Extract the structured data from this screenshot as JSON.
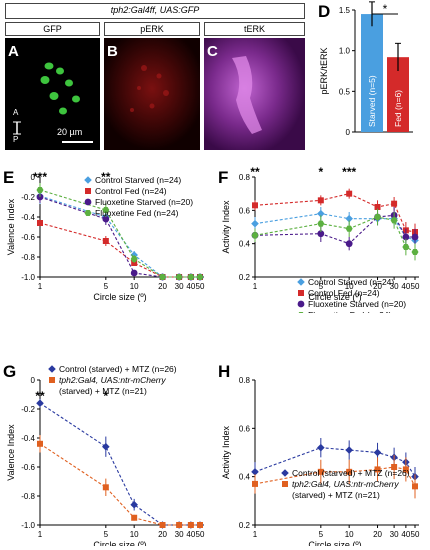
{
  "header": {
    "genotype": "tph2:Gal4ff, UAS:GFP"
  },
  "micrographs": {
    "a": {
      "letter": "A",
      "title": "GFP",
      "axis_a": "A",
      "axis_p": "P",
      "scale": "20 µm"
    },
    "b": {
      "letter": "B",
      "title": "pERK"
    },
    "c": {
      "letter": "C",
      "title": "tERK"
    }
  },
  "colors": {
    "control_starved": "#4a9fe0",
    "control_fed": "#d42a2a",
    "fluoxetine_starved": "#4a1a8a",
    "fluoxetine_fed": "#5cb040",
    "control_mtz": "#2a3aa0",
    "ntr_mtz": "#e06020"
  },
  "panels": {
    "d": {
      "letter": "D"
    },
    "e": {
      "letter": "E"
    },
    "f": {
      "letter": "F"
    },
    "g": {
      "letter": "G"
    },
    "h": {
      "letter": "H"
    }
  },
  "chart_data": [
    {
      "id": "D",
      "type": "bar",
      "ylabel": "pERK/tERK",
      "ylim": [
        0,
        1.5
      ],
      "yticks": [
        0,
        0.5,
        1.0,
        1.5
      ],
      "yticklabels": [
        "0",
        "0.5",
        "1.0",
        "1.5"
      ],
      "categories": [
        "Starved (n=5)",
        "Fed (n=6)"
      ],
      "values": [
        1.45,
        0.92
      ],
      "errors": [
        0.15,
        0.17
      ],
      "bar_colors": [
        "#4a9fe0",
        "#d42a2a"
      ],
      "significance": "*"
    },
    {
      "id": "E",
      "type": "line",
      "ylabel": "Valence Index",
      "xlabel": "Circle size (º)",
      "ylim": [
        -1.0,
        0.0
      ],
      "yticks": [
        -1.0,
        -0.8,
        -0.6,
        -0.4,
        -0.2,
        0
      ],
      "yticklabels": [
        "-1.0",
        "-0.8",
        "-0.6",
        "-0.4",
        "-0.2",
        "0"
      ],
      "x": [
        1,
        5,
        10,
        20,
        30,
        40,
        50
      ],
      "xticklabels": [
        "1",
        "5",
        "10",
        "20",
        "30",
        "40",
        "50"
      ],
      "series": [
        {
          "name": "Control Starved (n=24)",
          "values": [
            -0.19,
            -0.4,
            -0.78,
            -1.0,
            -1.0,
            -1.0,
            -1.0
          ],
          "errors": [
            0.08,
            0.06,
            0.04,
            0,
            0,
            0,
            0
          ]
        },
        {
          "name": "Control Fed (n=24)",
          "values": [
            -0.46,
            -0.64,
            -0.86,
            -1.0,
            -1.0,
            -1.0,
            -1.0
          ],
          "errors": [
            0.03,
            0.05,
            0.03,
            0,
            0,
            0,
            0
          ]
        },
        {
          "name": "Fluoxetine Starved (n=20)",
          "values": [
            -0.2,
            -0.42,
            -0.96,
            -1.0,
            -1.0,
            -1.0,
            -1.0
          ],
          "errors": [
            0.06,
            0.06,
            0.03,
            0,
            0,
            0,
            0
          ]
        },
        {
          "name": "Fluoxetine Fed (n=24)",
          "values": [
            -0.13,
            -0.33,
            -0.82,
            -1.0,
            -1.0,
            -1.0,
            -1.0
          ],
          "errors": [
            0.07,
            0.07,
            0.04,
            0,
            0,
            0,
            0
          ]
        }
      ],
      "annotations": [
        {
          "x": 1,
          "text": "***"
        },
        {
          "x": 5,
          "text": "**"
        }
      ]
    },
    {
      "id": "F",
      "type": "line",
      "ylabel": "Activity Index",
      "xlabel": "Circle size (º)",
      "ylim": [
        0.2,
        0.8
      ],
      "yticks": [
        0.2,
        0.4,
        0.6,
        0.8
      ],
      "yticklabels": [
        "0.2",
        "0.4",
        "0.6",
        "0.8"
      ],
      "x": [
        1,
        5,
        10,
        20,
        30,
        40,
        50
      ],
      "xticklabels": [
        "1",
        "5",
        "10",
        "20",
        "30",
        "40",
        "50"
      ],
      "series": [
        {
          "name": "Control Starved (n=24)",
          "values": [
            0.52,
            0.58,
            0.55,
            0.55,
            0.55,
            0.44,
            0.42
          ],
          "errors": [
            0.04,
            0.04,
            0.04,
            0.04,
            0.04,
            0.05,
            0.05
          ]
        },
        {
          "name": "Control Fed (n=24)",
          "values": [
            0.63,
            0.66,
            0.7,
            0.62,
            0.64,
            0.48,
            0.47
          ],
          "errors": [
            0.03,
            0.03,
            0.03,
            0.04,
            0.04,
            0.05,
            0.05
          ]
        },
        {
          "name": "Fluoxetine Starved (n=20)",
          "values": [
            0.45,
            0.46,
            0.4,
            0.56,
            0.57,
            0.44,
            0.44
          ],
          "errors": [
            0.04,
            0.05,
            0.04,
            0.05,
            0.05,
            0.05,
            0.05
          ]
        },
        {
          "name": "Fluoxetine Fed (n=24)",
          "values": [
            0.45,
            0.52,
            0.49,
            0.56,
            0.54,
            0.38,
            0.35
          ],
          "errors": [
            0.04,
            0.05,
            0.05,
            0.05,
            0.05,
            0.05,
            0.05
          ]
        }
      ],
      "annotations": [
        {
          "x": 1,
          "text": "**"
        },
        {
          "x": 5,
          "text": "*"
        },
        {
          "x": 10,
          "text": "***"
        }
      ]
    },
    {
      "id": "G",
      "type": "line",
      "ylabel": "Valence Index",
      "xlabel": "Circle size (º)",
      "ylim": [
        -1.0,
        0.0
      ],
      "yticks": [
        -1.0,
        -0.8,
        -0.6,
        -0.4,
        -0.2,
        0
      ],
      "yticklabels": [
        "-1.0",
        "-0.8",
        "-0.6",
        "-0.4",
        "-0.2",
        "0"
      ],
      "x": [
        1,
        5,
        10,
        20,
        30,
        40,
        50
      ],
      "xticklabels": [
        "1",
        "5",
        "10",
        "20",
        "30",
        "40",
        "50"
      ],
      "series": [
        {
          "name": "Control (starved) + MTZ (n=26)",
          "values": [
            -0.16,
            -0.46,
            -0.86,
            -1.0,
            -1.0,
            -1.0,
            -1.0
          ],
          "errors": [
            0.03,
            0.07,
            0.04,
            0,
            0,
            0,
            0
          ]
        },
        {
          "name": "tph2:Gal4, UAS:ntr-mCherry (starved) + MTZ (n=21)",
          "values": [
            -0.44,
            -0.74,
            -0.95,
            -1.0,
            -1.0,
            -1.0,
            -1.0
          ],
          "errors": [
            0.06,
            0.06,
            0.02,
            0,
            0,
            0,
            0
          ]
        }
      ],
      "annotations": [
        {
          "x": 1,
          "text": "**"
        },
        {
          "x": 5,
          "text": "*"
        }
      ]
    },
    {
      "id": "H",
      "type": "line",
      "ylabel": "Activity Index",
      "xlabel": "Circle size (º)",
      "ylim": [
        0.2,
        0.8
      ],
      "yticks": [
        0.2,
        0.4,
        0.6,
        0.8
      ],
      "yticklabels": [
        "0.2",
        "0.4",
        "0.6",
        "0.8"
      ],
      "x": [
        1,
        5,
        10,
        20,
        30,
        40,
        50
      ],
      "xticklabels": [
        "1",
        "5",
        "10",
        "20",
        "30",
        "40",
        "50"
      ],
      "series": [
        {
          "name": "Control (starved) + MTZ (n=26)",
          "values": [
            0.42,
            0.52,
            0.51,
            0.5,
            0.48,
            0.46,
            0.4
          ],
          "errors": [
            0.04,
            0.04,
            0.04,
            0.04,
            0.04,
            0.04,
            0.04
          ]
        },
        {
          "name": "tph2:Gal4, UAS:ntr-mCherry (starved) + MTZ (n=21)",
          "values": [
            0.37,
            0.42,
            0.42,
            0.43,
            0.44,
            0.43,
            0.36
          ],
          "errors": [
            0.04,
            0.05,
            0.05,
            0.05,
            0.05,
            0.05,
            0.05
          ]
        }
      ],
      "annotations": []
    }
  ]
}
